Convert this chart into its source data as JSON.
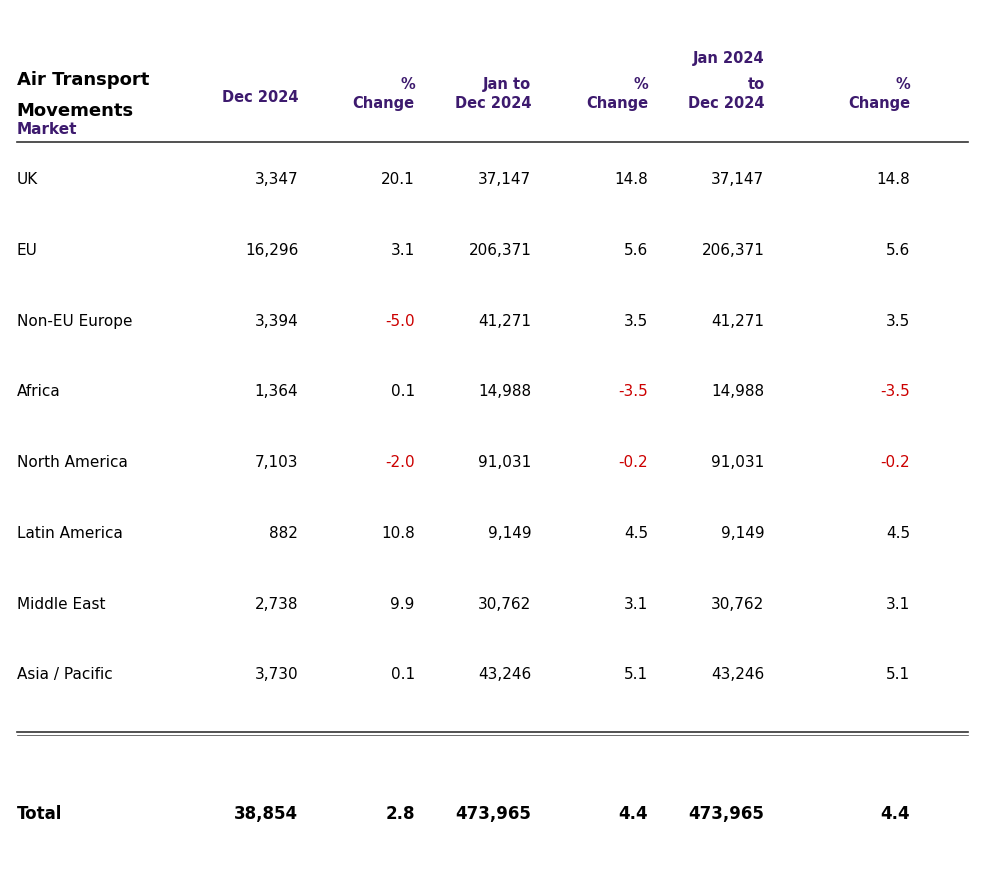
{
  "title_line1": "Air Transport",
  "title_line2": "Movements",
  "header_color": "#3d1a6e",
  "negative_color": "#cc0000",
  "positive_color": "#000000",
  "market_label": "Market",
  "col_headers": [
    [
      "",
      "",
      "",
      "",
      "Jan 2024",
      ""
    ],
    [
      "Dec 2024",
      "% Change",
      "Jan to\nDec 2024",
      "% Change",
      "to\nDec 2024",
      "% Change"
    ]
  ],
  "rows": [
    {
      "market": "UK",
      "dec2024": "3,347",
      "pct1": "20.1",
      "jan_dec": "37,147",
      "pct2": "14.8",
      "ytd": "37,147",
      "pct3": "14.8"
    },
    {
      "market": "EU",
      "dec2024": "16,296",
      "pct1": "3.1",
      "jan_dec": "206,371",
      "pct2": "5.6",
      "ytd": "206,371",
      "pct3": "5.6"
    },
    {
      "market": "Non-EU Europe",
      "dec2024": "3,394",
      "pct1": "-5.0",
      "jan_dec": "41,271",
      "pct2": "3.5",
      "ytd": "41,271",
      "pct3": "3.5"
    },
    {
      "market": "Africa",
      "dec2024": "1,364",
      "pct1": "0.1",
      "jan_dec": "14,988",
      "pct2": "-3.5",
      "ytd": "14,988",
      "pct3": "-3.5"
    },
    {
      "market": "North America",
      "dec2024": "7,103",
      "pct1": "-2.0",
      "jan_dec": "91,031",
      "pct2": "-0.2",
      "ytd": "91,031",
      "pct3": "-0.2"
    },
    {
      "market": "Latin America",
      "dec2024": "882",
      "pct1": "10.8",
      "jan_dec": "9,149",
      "pct2": "4.5",
      "ytd": "9,149",
      "pct3": "4.5"
    },
    {
      "market": "Middle East",
      "dec2024": "2,738",
      "pct1": "9.9",
      "jan_dec": "30,762",
      "pct2": "3.1",
      "ytd": "30,762",
      "pct3": "3.1"
    },
    {
      "market": "Asia / Pacific",
      "dec2024": "3,730",
      "pct1": "0.1",
      "jan_dec": "43,246",
      "pct2": "5.1",
      "ytd": "43,246",
      "pct3": "5.1"
    }
  ],
  "total": {
    "market": "Total",
    "dec2024": "38,854",
    "pct1": "2.8",
    "jan_dec": "473,965",
    "pct2": "4.4",
    "ytd": "473,965",
    "pct3": "4.4"
  },
  "bg_color": "#ffffff"
}
